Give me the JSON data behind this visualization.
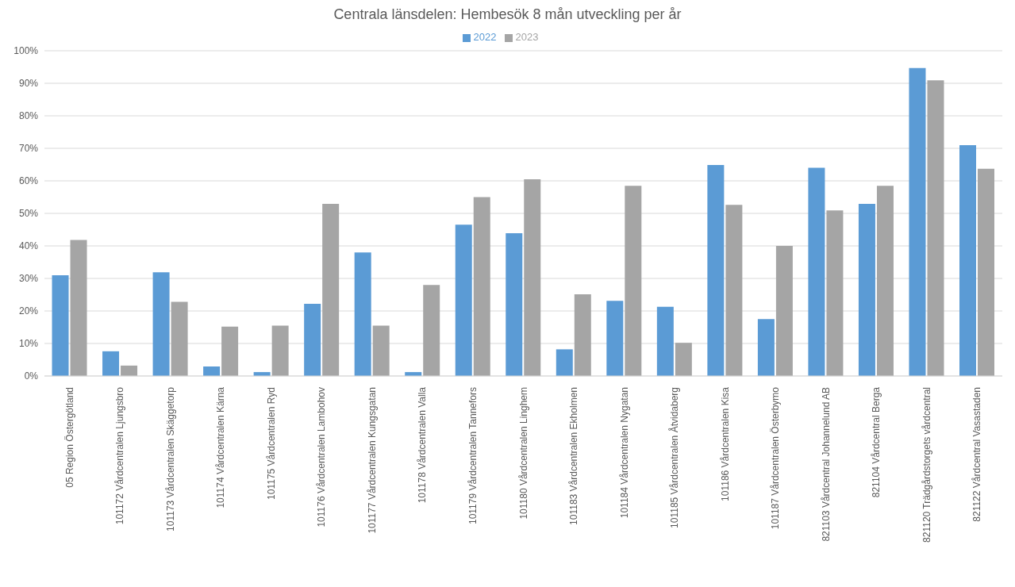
{
  "chart_data": {
    "type": "bar",
    "title": "Centrala länsdelen: Hembesök 8 mån utveckling per år",
    "categories": [
      "05 Region Östergötland",
      "101172 Vårdcentralen Ljungsbro",
      "101173 Vårdcentralen Skäggetorp",
      "101174 Vårdcentralen Kärna",
      "101175 Vårdcentralen Ryd",
      "101176 Vårdcentralen Lambohov",
      "101177 Vårdcentralen Kungsgatan",
      "101178 Vårdcentralen Valla",
      "101179 Vårdcentralen Tannefors",
      "101180 Vårdcentralen Linghem",
      "101183 Vårdcentralen Ekholmen",
      "101184 Vårdcentralen Nygatan",
      "101185 Vårdcentralen Åtvidaberg",
      "101186 Vårdcentralen Kisa",
      "101187 Vårdcentralen Österbymo",
      "821103 Vårdcentral Johannelund AB",
      "821104 Vårdcentral Berga",
      "821120 Trädgårdstorgets vårdcentral",
      "821122 Vårdcentral Vasastaden"
    ],
    "series": [
      {
        "name": "2022",
        "color": "#5b9bd5",
        "values": [
          31,
          7.6,
          31.9,
          2.9,
          1.2,
          22.2,
          38,
          1.2,
          46.5,
          43.9,
          8.2,
          23.1,
          21.3,
          64.9,
          17.5,
          64,
          52.9,
          94.7,
          71
        ]
      },
      {
        "name": "2023",
        "color": "#a5a5a5",
        "values": [
          41.8,
          3.2,
          22.8,
          15.2,
          15.5,
          52.9,
          15.5,
          28,
          55,
          60.5,
          25.1,
          58.5,
          10.2,
          52.6,
          40,
          50.9,
          58.5,
          90.9,
          63.7
        ]
      }
    ],
    "ylim": [
      0,
      100
    ],
    "yticks": [
      {
        "value": 0,
        "label": "0%"
      },
      {
        "value": 10,
        "label": "10%"
      },
      {
        "value": 20,
        "label": "20%"
      },
      {
        "value": 30,
        "label": "30%"
      },
      {
        "value": 40,
        "label": "40%"
      },
      {
        "value": 50,
        "label": "50%"
      },
      {
        "value": 60,
        "label": "60%"
      },
      {
        "value": 70,
        "label": "70%"
      },
      {
        "value": 80,
        "label": "80%"
      },
      {
        "value": 90,
        "label": "90%"
      },
      {
        "value": 100,
        "label": "100%"
      }
    ],
    "grid": "y",
    "legend": "top"
  }
}
